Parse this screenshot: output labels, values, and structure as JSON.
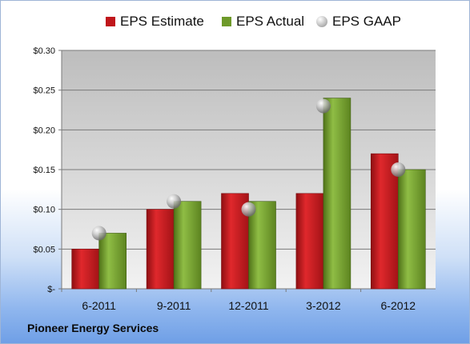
{
  "chart_data": {
    "type": "bar",
    "categories": [
      "6-2011",
      "9-2011",
      "12-2011",
      "3-2012",
      "6-2012"
    ],
    "series": [
      {
        "name": "EPS Estimate",
        "values": [
          0.05,
          0.1,
          0.12,
          0.12,
          0.17
        ],
        "color": "#c0161b"
      },
      {
        "name": "EPS Actual",
        "values": [
          0.07,
          0.11,
          0.11,
          0.24,
          0.15
        ],
        "color": "#6e9a2a"
      },
      {
        "name": "EPS GAAP",
        "values": [
          0.07,
          0.11,
          0.1,
          0.23,
          0.15
        ],
        "color": "#a8a8a8"
      }
    ],
    "yticks": [
      0,
      0.05,
      0.1,
      0.15,
      0.2,
      0.25,
      0.3
    ],
    "ytick_labels": [
      "$-",
      "$0.05",
      "$0.10",
      "$0.15",
      "$0.20",
      "$0.25",
      "$0.30"
    ],
    "ylim": [
      0,
      0.3
    ],
    "grid": true,
    "legend_position": "top-center"
  },
  "legend": {
    "estimate": "EPS Estimate",
    "actual": "EPS Actual",
    "gaap": "EPS GAAP"
  },
  "company": "Pioneer Energy Services"
}
